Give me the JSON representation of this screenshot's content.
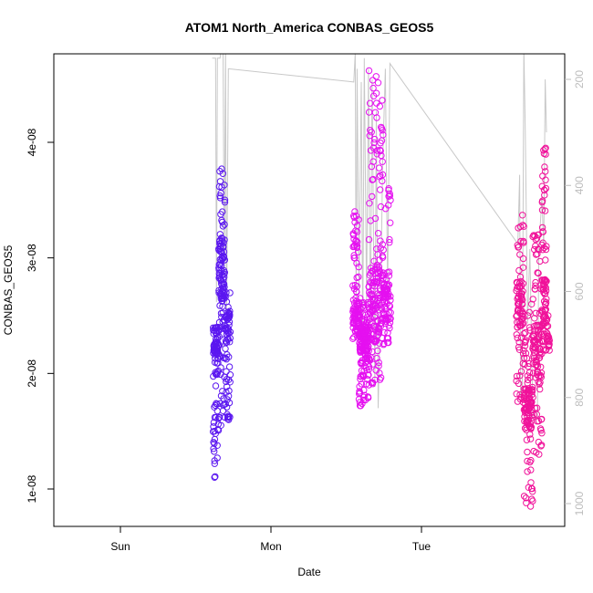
{
  "chart_data": {
    "type": "scatter",
    "title": "ATOM1 North_America CONBAS_GEOS5",
    "xlabel": "Date",
    "ylabel": "CONBAS_GEOS5",
    "x_ticks": [
      "Sun",
      "Mon",
      "Tue"
    ],
    "y_ticks": [
      "1e-08",
      "2e-08",
      "3e-08",
      "4e-08"
    ],
    "y_tick_values": [
      1e-08,
      2e-08,
      3e-08,
      4e-08
    ],
    "ylim": [
      7e-09,
      4.8e-08
    ],
    "right_axis": {
      "ticks": [
        "200",
        "400",
        "600",
        "800",
        "1000"
      ],
      "tick_values": [
        200,
        400,
        600,
        800,
        1000
      ],
      "range": [
        160,
        1030
      ],
      "inverted": true,
      "color": "#bdbdbd"
    },
    "grid": false,
    "legend": "none",
    "series": [
      {
        "color": "#5b17f0",
        "segments": [
          {
            "t0": -0.384,
            "t1": -0.347,
            "ymin": 1.1e-08,
            "ymax": 2.4e-08,
            "ybase": 2.25e-08,
            "n": 90
          },
          {
            "t0": -0.347,
            "t1": -0.306,
            "ymin": 1.55e-08,
            "ymax": 3.77e-08,
            "ybase": 2.9e-08,
            "n": 120
          },
          {
            "t0": -0.306,
            "t1": -0.27,
            "ymin": 1.6e-08,
            "ymax": 2.7e-08,
            "ybase": 2.4e-08,
            "n": 70
          }
        ]
      },
      {
        "color": "#e510f0",
        "segments": [
          {
            "t0": 0.544,
            "t1": 0.585,
            "ymin": 2.3e-08,
            "ymax": 3.4e-08,
            "ybase": 2.5e-08,
            "n": 90
          },
          {
            "t0": 0.585,
            "t1": 0.65,
            "ymin": 1.72e-08,
            "ymax": 2.65e-08,
            "ybase": 2.3e-08,
            "n": 170
          },
          {
            "t0": 0.65,
            "t1": 0.745,
            "ymin": 1.9e-08,
            "ymax": 4.62e-08,
            "ybase": 2.6e-08,
            "n": 190
          },
          {
            "t0": 0.745,
            "t1": 0.795,
            "ymin": 2.25e-08,
            "ymax": 3.6e-08,
            "ybase": 2.6e-08,
            "n": 80
          }
        ]
      },
      {
        "color": "#f0129a",
        "segments": [
          {
            "t0": 1.63,
            "t1": 1.68,
            "ymin": 1.75e-08,
            "ymax": 3.37e-08,
            "ybase": 2.6e-08,
            "n": 90
          },
          {
            "t0": 1.68,
            "t1": 1.74,
            "ymin": 8.5e-09,
            "ymax": 2.6e-08,
            "ybase": 1.7e-08,
            "n": 120
          },
          {
            "t0": 1.74,
            "t1": 1.8,
            "ymin": 1.3e-08,
            "ymax": 3.2e-08,
            "ybase": 2.2e-08,
            "n": 110
          },
          {
            "t0": 1.8,
            "t1": 1.83,
            "ymin": 2.2e-08,
            "ymax": 3.95e-08,
            "ybase": 2.6e-08,
            "n": 80
          },
          {
            "t0": 1.83,
            "t1": 1.85,
            "ymin": 2.2e-08,
            "ymax": 2.5e-08,
            "ybase": 2.3e-08,
            "n": 20
          }
        ]
      }
    ],
    "pressure_line": {
      "color": "#c8c8c8",
      "points": [
        [
          -0.39,
          160
        ],
        [
          -0.368,
          160
        ],
        [
          -0.362,
          620
        ],
        [
          -0.356,
          160
        ],
        [
          -0.35,
          160
        ],
        [
          -0.338,
          160
        ],
        [
          -0.33,
          140
        ],
        [
          -0.318,
          140
        ],
        [
          -0.31,
          560
        ],
        [
          -0.302,
          140
        ],
        [
          -0.295,
          660
        ],
        [
          -0.283,
          180
        ],
        [
          0.55,
          205
        ],
        [
          0.56,
          150
        ],
        [
          0.566,
          640
        ],
        [
          0.572,
          180
        ],
        [
          0.585,
          600
        ],
        [
          0.6,
          205
        ],
        [
          0.61,
          700
        ],
        [
          0.62,
          160
        ],
        [
          0.635,
          620
        ],
        [
          0.648,
          180
        ],
        [
          0.66,
          700
        ],
        [
          0.672,
          200
        ],
        [
          0.69,
          780
        ],
        [
          0.7,
          260
        ],
        [
          0.712,
          820
        ],
        [
          0.73,
          600
        ],
        [
          0.742,
          360
        ],
        [
          0.76,
          180
        ],
        [
          0.775,
          600
        ],
        [
          0.79,
          170
        ],
        [
          1.64,
          510
        ],
        [
          1.652,
          380
        ],
        [
          1.658,
          800
        ],
        [
          1.67,
          780
        ],
        [
          1.68,
          140
        ],
        [
          1.69,
          300
        ],
        [
          1.705,
          660
        ],
        [
          1.72,
          520
        ],
        [
          1.74,
          840
        ],
        [
          1.77,
          840
        ],
        [
          1.78,
          520
        ],
        [
          1.8,
          420
        ],
        [
          1.812,
          520
        ],
        [
          1.822,
          200
        ],
        [
          1.83,
          300
        ]
      ]
    }
  }
}
